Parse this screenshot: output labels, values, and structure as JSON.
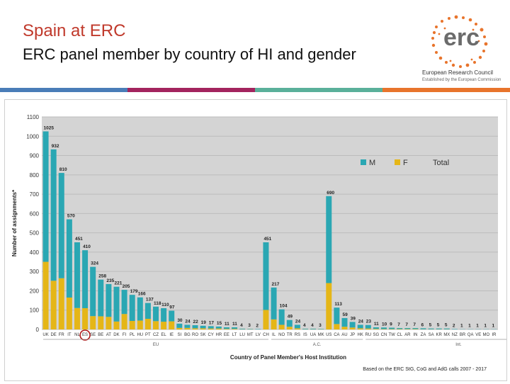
{
  "header": {
    "title": "Spain at ERC",
    "subtitle": "ERC panel member by country of HI and gender"
  },
  "logo": {
    "name": "erc",
    "line1": "European Research Council",
    "line2": "Established by the European Commission"
  },
  "colors": {
    "title_red": "#c0392b",
    "M": "#2aa7b3",
    "F": "#e5b617",
    "plot_bg": "#d4d4d4",
    "stripe1": "#4a7db8",
    "stripe2": "#a3245e",
    "stripe3": "#5ab09a",
    "stripe4": "#e8742c"
  },
  "chart_data": {
    "type": "bar",
    "stacked": true,
    "title": "",
    "xlabel": "Country of Panel Member's Host Institution",
    "ylabel": "Number of assignments*",
    "ylim": [
      0,
      1100
    ],
    "yticks": [
      0,
      100,
      200,
      300,
      400,
      500,
      600,
      700,
      800,
      900,
      1000,
      1100
    ],
    "grid": "horizontal",
    "legend": {
      "position": "top-right",
      "entries": [
        "M",
        "F",
        "Total"
      ]
    },
    "note": "Based on the ERC StG, CoG and AdG calls 2007 - 2017",
    "groups": [
      {
        "label": "EU",
        "from": 0,
        "to": 28
      },
      {
        "label": "A.C.",
        "from": 29,
        "to": 40
      },
      {
        "label": "Int.",
        "from": 41,
        "to": 64
      }
    ],
    "highlight": "ES",
    "categories": [
      "UK",
      "DE",
      "FR",
      "IT",
      "NL",
      "ES",
      "SE",
      "BE",
      "AT",
      "DK",
      "FI",
      "PL",
      "HU",
      "PT",
      "CZ",
      "EL",
      "IE",
      "SI",
      "BG",
      "RO",
      "SK",
      "CY",
      "HR",
      "EE",
      "LT",
      "LU",
      "MT",
      "LV",
      "CH",
      "IL",
      "NO",
      "TR",
      "RS",
      "IS",
      "UA",
      "MK",
      "US",
      "CA",
      "AU",
      "JP",
      "HK",
      "RU",
      "SG",
      "CN",
      "TW",
      "CL",
      "AR",
      "IN",
      "ZA",
      "SA",
      "KR",
      "MX",
      "NZ",
      "BR",
      "QA",
      "VE",
      "MO",
      "IR"
    ],
    "total_labels": [
      "1025",
      "932",
      "810",
      "570",
      "451",
      "410",
      "324",
      "258",
      "235",
      "221",
      "205",
      "179",
      "166",
      "137",
      "118",
      "110",
      "97",
      "30",
      "24",
      "22",
      "19",
      "17",
      "15",
      "11",
      "11",
      "4",
      "3",
      "2",
      "451",
      "217",
      "104",
      "49",
      "24",
      "4",
      "4",
      "3",
      "690",
      "113",
      "59",
      "39",
      "24",
      "23",
      "11",
      "10",
      "9",
      "7",
      "7",
      "7",
      "6",
      "5",
      "5",
      "5",
      "2",
      "1",
      "1",
      "1",
      "1",
      "1"
    ],
    "series": [
      {
        "name": "M",
        "values": [
          675,
          680,
          545,
          405,
          340,
          300,
          255,
          190,
          170,
          180,
          125,
          135,
          120,
          82,
          75,
          70,
          55,
          22,
          16,
          16,
          13,
          12,
          10,
          8,
          8,
          3,
          2,
          2,
          350,
          165,
          80,
          35,
          18,
          3,
          3,
          2,
          450,
          85,
          45,
          29,
          18,
          18,
          8,
          8,
          7,
          5,
          5,
          5,
          5,
          4,
          4,
          4,
          2,
          1,
          1,
          1,
          1,
          1
        ]
      },
      {
        "name": "F",
        "values": [
          350,
          252,
          265,
          165,
          111,
          110,
          69,
          68,
          65,
          41,
          80,
          44,
          46,
          55,
          43,
          40,
          42,
          8,
          8,
          6,
          6,
          5,
          5,
          3,
          3,
          1,
          1,
          0,
          101,
          52,
          24,
          14,
          6,
          1,
          1,
          1,
          240,
          28,
          14,
          10,
          6,
          5,
          3,
          2,
          2,
          2,
          2,
          2,
          1,
          1,
          1,
          1,
          0,
          0,
          0,
          0,
          0,
          0
        ]
      }
    ]
  }
}
